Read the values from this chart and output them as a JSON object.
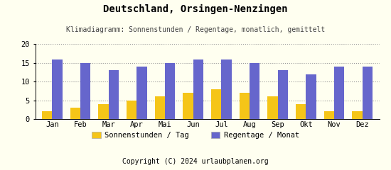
{
  "title": "Deutschland, Orsingen-Nenzingen",
  "subtitle": "Klimadiagramm: Sonnenstunden / Regentage, monatlich, gemittelt",
  "months": [
    "Jan",
    "Feb",
    "Mar",
    "Apr",
    "Mai",
    "Jun",
    "Jul",
    "Aug",
    "Sep",
    "Okt",
    "Nov",
    "Dez"
  ],
  "sonnenstunden": [
    2,
    3,
    4,
    5,
    6,
    7,
    8,
    7,
    6,
    4,
    2,
    2
  ],
  "regentage": [
    16,
    15,
    13,
    14,
    15,
    16,
    16,
    15,
    13,
    12,
    14,
    14
  ],
  "bar_color_sonne": "#f5c518",
  "bar_color_regen": "#6666cc",
  "background_color": "#fffff0",
  "footer_bg": "#e8a800",
  "footer_text": "Copyright (C) 2024 urlaubplanen.org",
  "ylabel_max": 20,
  "yticks": [
    0,
    5,
    10,
    15,
    20
  ],
  "legend_sonne": "Sonnenstunden / Tag",
  "legend_regen": "Regentage / Monat",
  "title_fontsize": 10,
  "subtitle_fontsize": 7,
  "axis_fontsize": 7.5,
  "legend_fontsize": 7.5,
  "footer_fontsize": 7
}
